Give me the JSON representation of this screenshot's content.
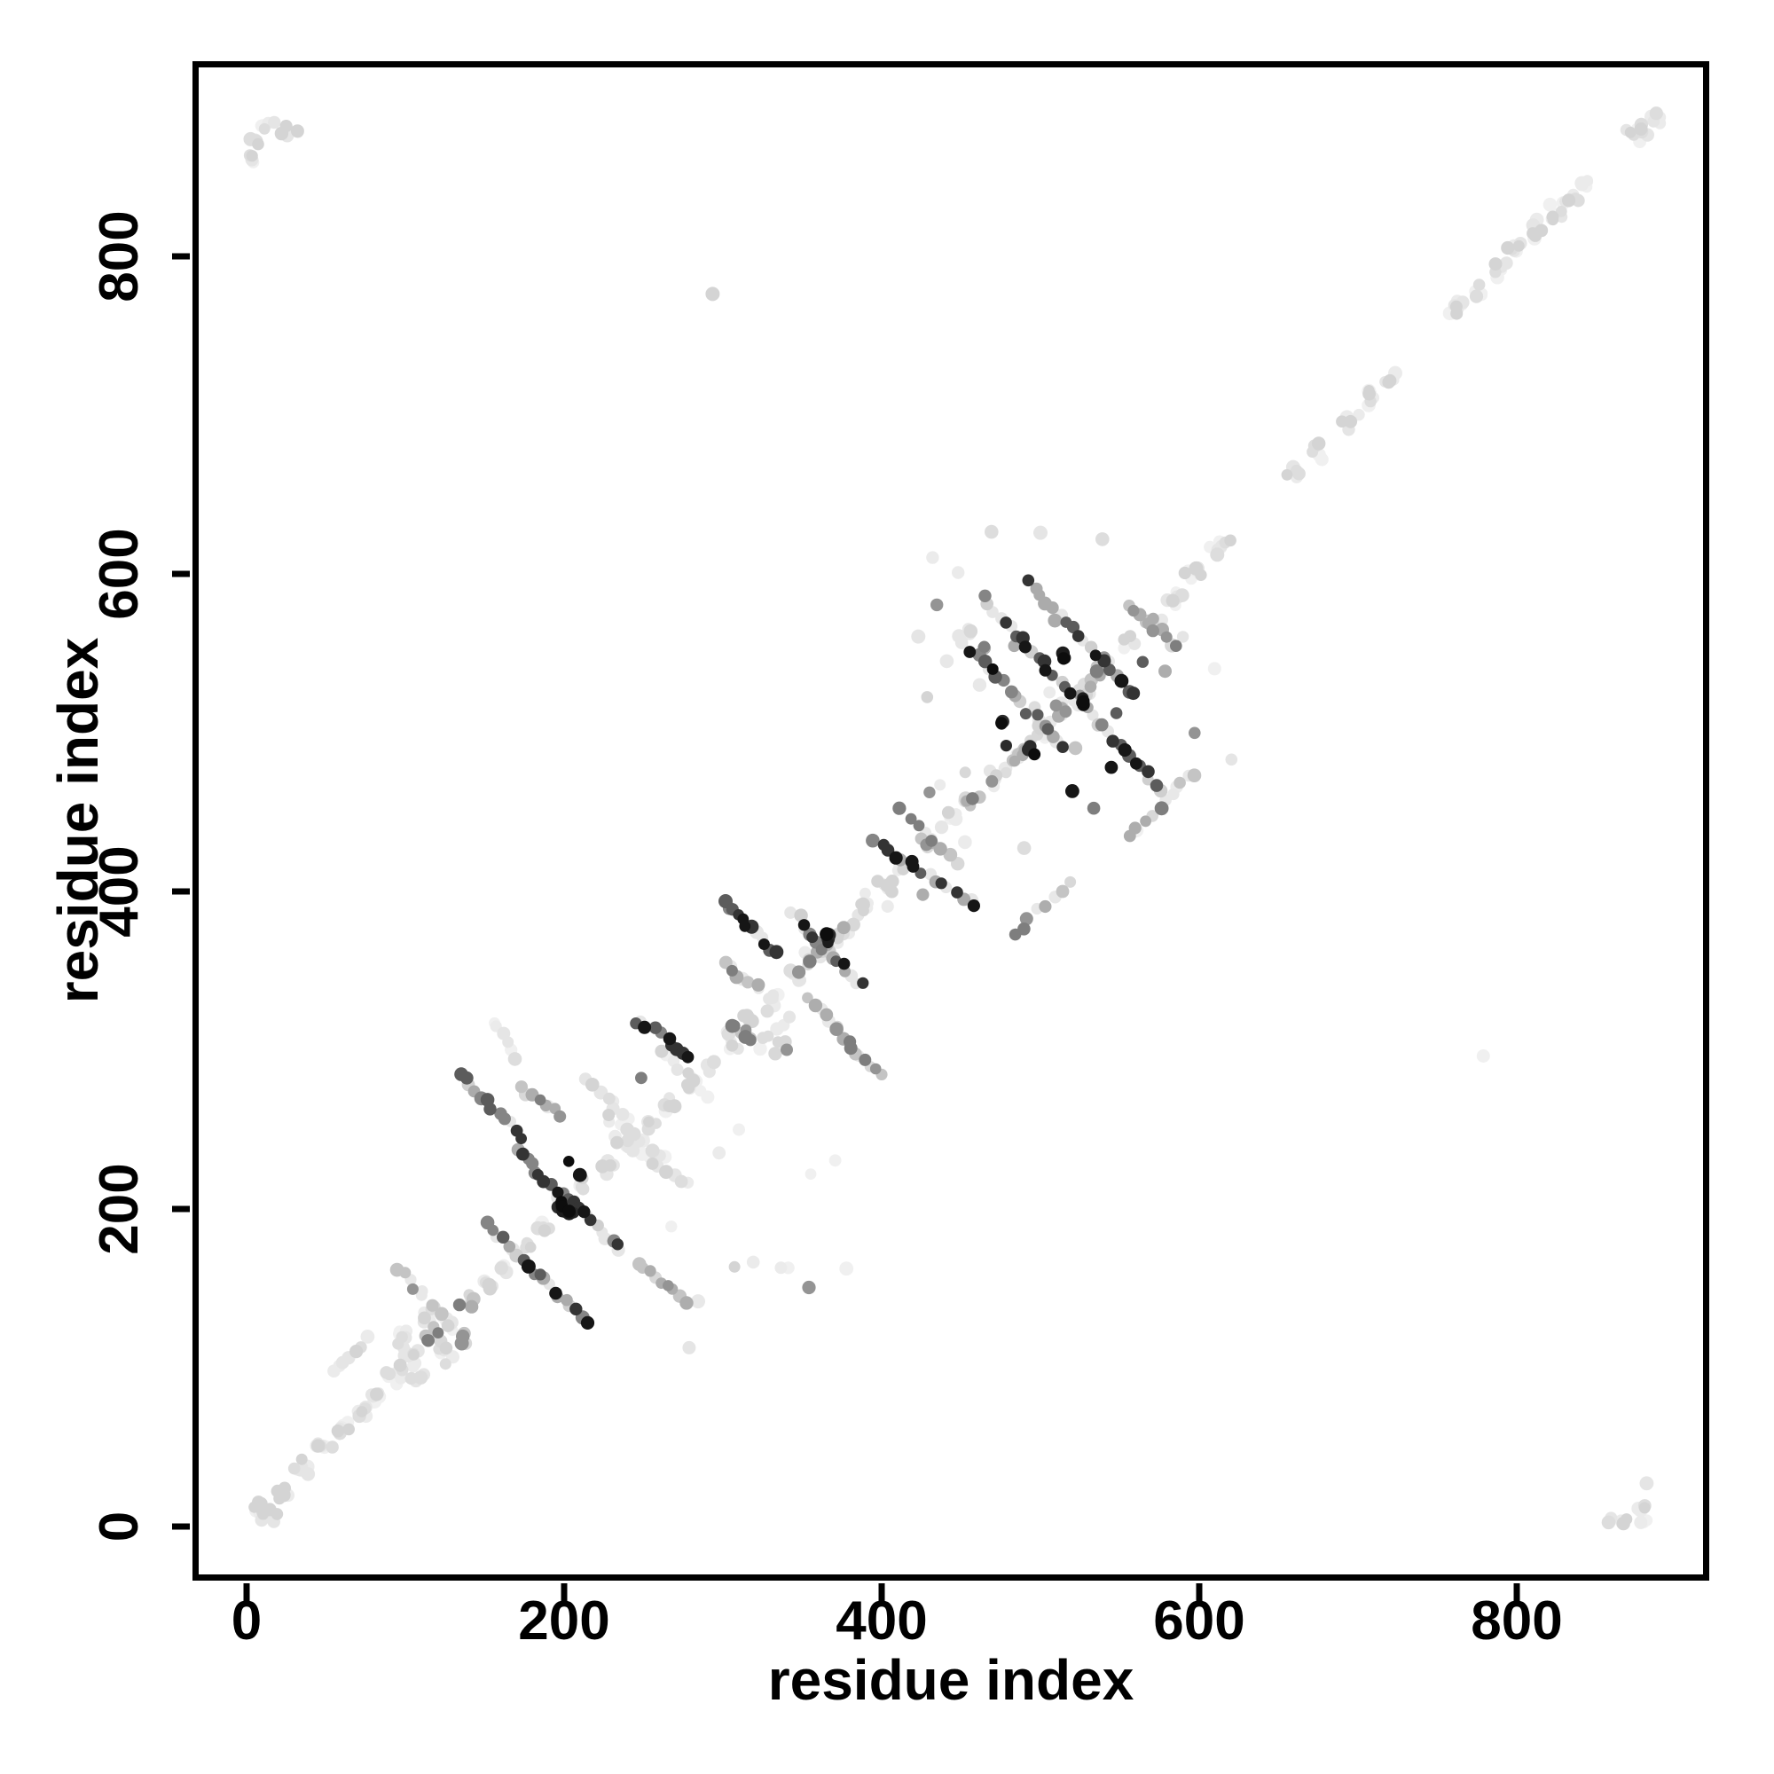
{
  "figure": {
    "background": "#ffffff",
    "frame_color": "#000000",
    "point_color_range": [
      "#f0f0f0",
      "#0d0d0d"
    ]
  },
  "chart_data": {
    "type": "scatter",
    "title": "",
    "xlabel": "residue index",
    "ylabel": "residue index",
    "xlim": [
      -34,
      916
    ],
    "ylim": [
      -34,
      918
    ],
    "x_ticks": [
      0,
      200,
      400,
      600,
      800
    ],
    "y_ticks": [
      0,
      200,
      400,
      600,
      800
    ],
    "grid": false,
    "legend": null,
    "marker": {
      "shape": "circle",
      "radius_px": 7
    },
    "shade_levels": {
      "0": [
        "#f0f0f0",
        "#ebebeb",
        "#e5e5e5",
        "#dddddd",
        "#d4d4d4"
      ],
      "1": [
        "#e8e8e8",
        "#d8d8d8",
        "#c4c4c4",
        "#adadad",
        "#949494",
        "#7e7e7e"
      ],
      "2": [
        "#e6e6e6",
        "#cfcfcf",
        "#ababab",
        "#858585",
        "#5c5c5c",
        "#343434",
        "#161616"
      ],
      "3": [
        "#2b2b2b",
        "#1c1c1c",
        "#0d0d0d"
      ]
    },
    "features": {
      "segments": [
        [
          152,
          190,
          214,
          129,
          20,
          2
        ],
        [
          170,
          236,
          236,
          174,
          22,
          2
        ],
        [
          246,
          167,
          281,
          139,
          10,
          1
        ],
        [
          231,
          245,
          277,
          216,
          12,
          0
        ],
        [
          134,
          285,
          173,
          246,
          12,
          2
        ],
        [
          174,
          276,
          197,
          258,
          8,
          1
        ],
        [
          215,
          282,
          241,
          256,
          8,
          0
        ],
        [
          226,
          258,
          264,
          231,
          10,
          0
        ],
        [
          245,
          319,
          279,
          297,
          10,
          2
        ],
        [
          154,
          319,
          169,
          297,
          6,
          0
        ],
        [
          55,
          98,
          75,
          118,
          7,
          0
        ],
        [
          96,
          162,
          126,
          131,
          10,
          1
        ],
        [
          260,
          300,
          290,
          272,
          10,
          0
        ],
        [
          301,
          393,
          333,
          362,
          12,
          2
        ],
        [
          344,
          386,
          386,
          341,
          16,
          2
        ],
        [
          349,
          349,
          381,
          381,
          10,
          1
        ],
        [
          301,
          356,
          323,
          338,
          8,
          1
        ],
        [
          355,
          332,
          399,
          283,
          16,
          1
        ],
        [
          396,
          431,
          459,
          390,
          16,
          2
        ],
        [
          412,
          452,
          448,
          418,
          8,
          1
        ],
        [
          322,
          302,
          342,
          322,
          6,
          0
        ],
        [
          464,
          584,
          577,
          463,
          34,
          2
        ],
        [
          448,
          560,
          515,
          490,
          18,
          2
        ],
        [
          492,
          595,
          560,
          523,
          18,
          2
        ],
        [
          468,
          468,
          542,
          542,
          18,
          1
        ],
        [
          556,
          434,
          598,
          476,
          10,
          1
        ],
        [
          484,
          372,
          518,
          406,
          8,
          1
        ],
        [
          557,
          580,
          585,
          554,
          10,
          1
        ]
      ],
      "clusters": [
        [
          10,
          10,
          14,
          9,
          0
        ],
        [
          24,
          22,
          6,
          6,
          0
        ],
        [
          36,
          38,
          7,
          7,
          0
        ],
        [
          48,
          50,
          7,
          7,
          0
        ],
        [
          60,
          60,
          7,
          7,
          0
        ],
        [
          71,
          72,
          6,
          6,
          0
        ],
        [
          82,
          82,
          6,
          6,
          0
        ],
        [
          93,
          96,
          8,
          7,
          0
        ],
        [
          104,
          108,
          7,
          7,
          0
        ],
        [
          116,
          120,
          8,
          7,
          1
        ],
        [
          128,
          128,
          6,
          6,
          0
        ],
        [
          140,
          141,
          6,
          6,
          1
        ],
        [
          150,
          152,
          5,
          6,
          0
        ],
        [
          163,
          163,
          5,
          6,
          0
        ],
        [
          176,
          176,
          5,
          6,
          0
        ],
        [
          189,
          189,
          5,
          6,
          0
        ],
        [
          201,
          203,
          5,
          6,
          0
        ],
        [
          214,
          214,
          5,
          6,
          0
        ],
        [
          228,
          228,
          5,
          6,
          0
        ],
        [
          241,
          241,
          5,
          6,
          0
        ],
        [
          253,
          254,
          5,
          6,
          0
        ],
        [
          266,
          266,
          5,
          6,
          0
        ],
        [
          279,
          279,
          5,
          6,
          0
        ],
        [
          291,
          291,
          5,
          6,
          0
        ],
        [
          305,
          305,
          6,
          7,
          0
        ],
        [
          318,
          318,
          6,
          7,
          0
        ],
        [
          331,
          331,
          6,
          7,
          0
        ],
        [
          345,
          345,
          6,
          7,
          0
        ],
        [
          359,
          359,
          6,
          7,
          0
        ],
        [
          373,
          373,
          6,
          7,
          0
        ],
        [
          388,
          388,
          6,
          7,
          0
        ],
        [
          402,
          402,
          7,
          7,
          0
        ],
        [
          415,
          415,
          6,
          7,
          0
        ],
        [
          430,
          430,
          7,
          7,
          1
        ],
        [
          444,
          445,
          6,
          7,
          0
        ],
        [
          458,
          458,
          7,
          7,
          1
        ],
        [
          472,
          472,
          6,
          7,
          0
        ],
        [
          486,
          486,
          7,
          7,
          1
        ],
        [
          500,
          500,
          6,
          7,
          0
        ],
        [
          514,
          514,
          7,
          7,
          1
        ],
        [
          528,
          528,
          6,
          7,
          0
        ],
        [
          542,
          542,
          7,
          7,
          1
        ],
        [
          556,
          556,
          6,
          7,
          0
        ],
        [
          570,
          570,
          7,
          7,
          1
        ],
        [
          584,
          584,
          6,
          7,
          0
        ],
        [
          598,
          599,
          9,
          8,
          0
        ],
        [
          612,
          616,
          8,
          8,
          0
        ],
        [
          662,
          665,
          6,
          7,
          0
        ],
        [
          673,
          679,
          6,
          7,
          0
        ],
        [
          694,
          697,
          7,
          7,
          0
        ],
        [
          709,
          711,
          7,
          7,
          0
        ],
        [
          721,
          724,
          6,
          7,
          0
        ],
        [
          764,
          767,
          9,
          8,
          0
        ],
        [
          777,
          779,
          7,
          7,
          0
        ],
        [
          789,
          791,
          6,
          7,
          0
        ],
        [
          801,
          804,
          7,
          7,
          0
        ],
        [
          813,
          816,
          8,
          8,
          0
        ],
        [
          824,
          827,
          7,
          7,
          0
        ],
        [
          834,
          836,
          6,
          6,
          0
        ],
        [
          844,
          846,
          5,
          6,
          0
        ],
        [
          876,
          878,
          10,
          8,
          0
        ],
        [
          886,
          887,
          5,
          6,
          0
        ],
        [
          100,
          118,
          8,
          8,
          0
        ],
        [
          112,
          132,
          6,
          7,
          0
        ],
        [
          125,
          108,
          6,
          7,
          0
        ],
        [
          138,
          120,
          5,
          6,
          1
        ],
        [
          108,
          95,
          5,
          6,
          0
        ],
        [
          197,
          202,
          6,
          5,
          3
        ],
        [
          204,
          197,
          4,
          4,
          3
        ],
        [
          365,
          371,
          5,
          5,
          3
        ],
        [
          310,
          312,
          8,
          8,
          1
        ],
        [
          337,
          300,
          5,
          6,
          1
        ],
        [
          529,
          521,
          4,
          4,
          3
        ],
        [
          516,
          548,
          3,
          4,
          3
        ],
        [
          494,
          489,
          3,
          4,
          3
        ],
        [
          474,
          506,
          3,
          4,
          3
        ],
        [
          455,
          563,
          3,
          4,
          1
        ],
        [
          466,
          553,
          2,
          4,
          1
        ],
        [
          4,
          862,
          4,
          5,
          0
        ],
        [
          6,
          874,
          4,
          5,
          0
        ],
        [
          14,
          881,
          5,
          6,
          0
        ],
        [
          24,
          880,
          4,
          5,
          0
        ],
        [
          31,
          879,
          2,
          3,
          0
        ],
        [
          880,
          28,
          2,
          3,
          0
        ],
        [
          880,
          12,
          4,
          5,
          0
        ],
        [
          880,
          3,
          3,
          4,
          0
        ],
        [
          868,
          4,
          4,
          5,
          0
        ],
        [
          858,
          3,
          2,
          3,
          0
        ]
      ],
      "singles": [
        [
          307,
          163,
          0
        ],
        [
          318,
          166,
          0
        ],
        [
          337,
          163,
          0
        ],
        [
          341,
          163,
          0
        ],
        [
          279,
          112,
          0
        ],
        [
          294,
          776,
          0
        ],
        [
          779,
          296,
          0
        ],
        [
          390,
          399,
          0
        ],
        [
          404,
          391,
          0
        ],
        [
          398,
          406,
          0
        ],
        [
          423,
          561,
          0
        ],
        [
          432,
          610,
          0
        ],
        [
          470,
          626,
          0
        ],
        [
          610,
          541,
          0
        ],
        [
          596,
          500,
          1
        ],
        [
          621,
          483,
          0
        ],
        [
          586,
          466,
          0
        ],
        [
          560,
          438,
          0
        ],
        [
          489,
          427,
          0
        ],
        [
          452,
          432,
          0
        ],
        [
          437,
          467,
          0
        ],
        [
          428,
          523,
          0
        ],
        [
          448,
          601,
          0
        ],
        [
          500,
          626,
          0
        ],
        [
          540,
          621,
          0
        ],
        [
          355,
          222,
          0
        ],
        [
          370,
          230,
          0
        ],
        [
          268,
          190,
          0
        ],
        [
          297,
          235,
          0
        ],
        [
          355,
          150,
          1
        ],
        [
          378,
          162,
          0
        ],
        [
          310,
          250,
          0
        ],
        [
          248,
          282,
          1
        ],
        [
          203,
          230,
          3
        ],
        [
          210,
          222,
          2
        ],
        [
          425,
          398,
          1
        ],
        [
          438,
          441,
          2
        ],
        [
          452,
          476,
          1
        ],
        [
          548,
          512,
          2
        ],
        [
          523,
          490,
          1
        ],
        [
          564,
          545,
          2
        ],
        [
          578,
          538,
          1
        ],
        [
          590,
          560,
          0
        ],
        [
          434,
          580,
          1
        ],
        [
          483,
          555,
          2
        ],
        [
          441,
          545,
          1
        ],
        [
          509,
          570,
          2
        ],
        [
          470,
          540,
          3
        ],
        [
          462,
          530,
          1
        ],
        [
          520,
          462,
          2
        ],
        [
          533,
          452,
          1
        ],
        [
          545,
          478,
          2
        ],
        [
          430,
          463,
          1
        ],
        [
          478,
          492,
          3
        ],
        [
          505,
          525,
          0
        ],
        [
          497,
          517,
          0
        ]
      ]
    }
  }
}
